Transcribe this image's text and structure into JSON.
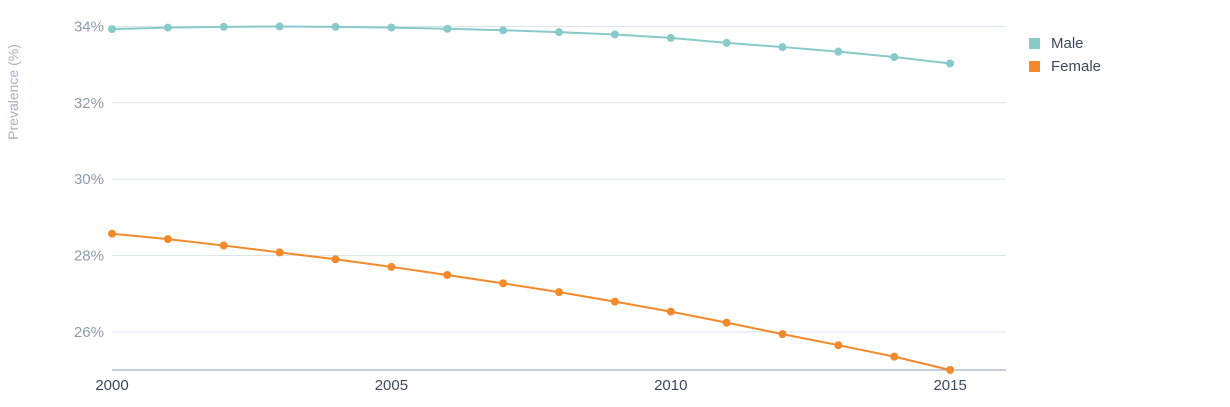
{
  "chart_data": {
    "type": "line",
    "ylabel": "Prevalence (%)",
    "x": [
      2000,
      2001,
      2002,
      2003,
      2004,
      2005,
      2006,
      2007,
      2008,
      2009,
      2010,
      2011,
      2012,
      2013,
      2014,
      2015
    ],
    "xticks": [
      {
        "value": 2000,
        "label": "2000"
      },
      {
        "value": 2005,
        "label": "2005"
      },
      {
        "value": 2010,
        "label": "2010"
      },
      {
        "value": 2015,
        "label": "2015"
      }
    ],
    "yticks": [
      {
        "value": 26,
        "label": "26%"
      },
      {
        "value": 28,
        "label": "28%"
      },
      {
        "value": 30,
        "label": "30%"
      },
      {
        "value": 32,
        "label": "32%"
      },
      {
        "value": 34,
        "label": "34%"
      }
    ],
    "xlim": [
      2000,
      2016
    ],
    "ylim": [
      25,
      34.3
    ],
    "grid": true,
    "legend_position": "top-right",
    "series": [
      {
        "name": "Male",
        "color": "#88c9c9",
        "values": [
          33.93,
          33.97,
          33.99,
          34.0,
          33.99,
          33.97,
          33.94,
          33.9,
          33.85,
          33.79,
          33.7,
          33.57,
          33.46,
          33.34,
          33.2,
          33.03
        ]
      },
      {
        "name": "Female",
        "color": "#f2892a",
        "values": [
          28.57,
          28.43,
          28.26,
          28.08,
          27.9,
          27.7,
          27.49,
          27.27,
          27.04,
          26.79,
          26.53,
          26.24,
          25.94,
          25.65,
          25.35,
          25.0
        ]
      }
    ],
    "colors": {
      "grid": "#dde3ec",
      "axis": "#8f9bb0"
    }
  }
}
